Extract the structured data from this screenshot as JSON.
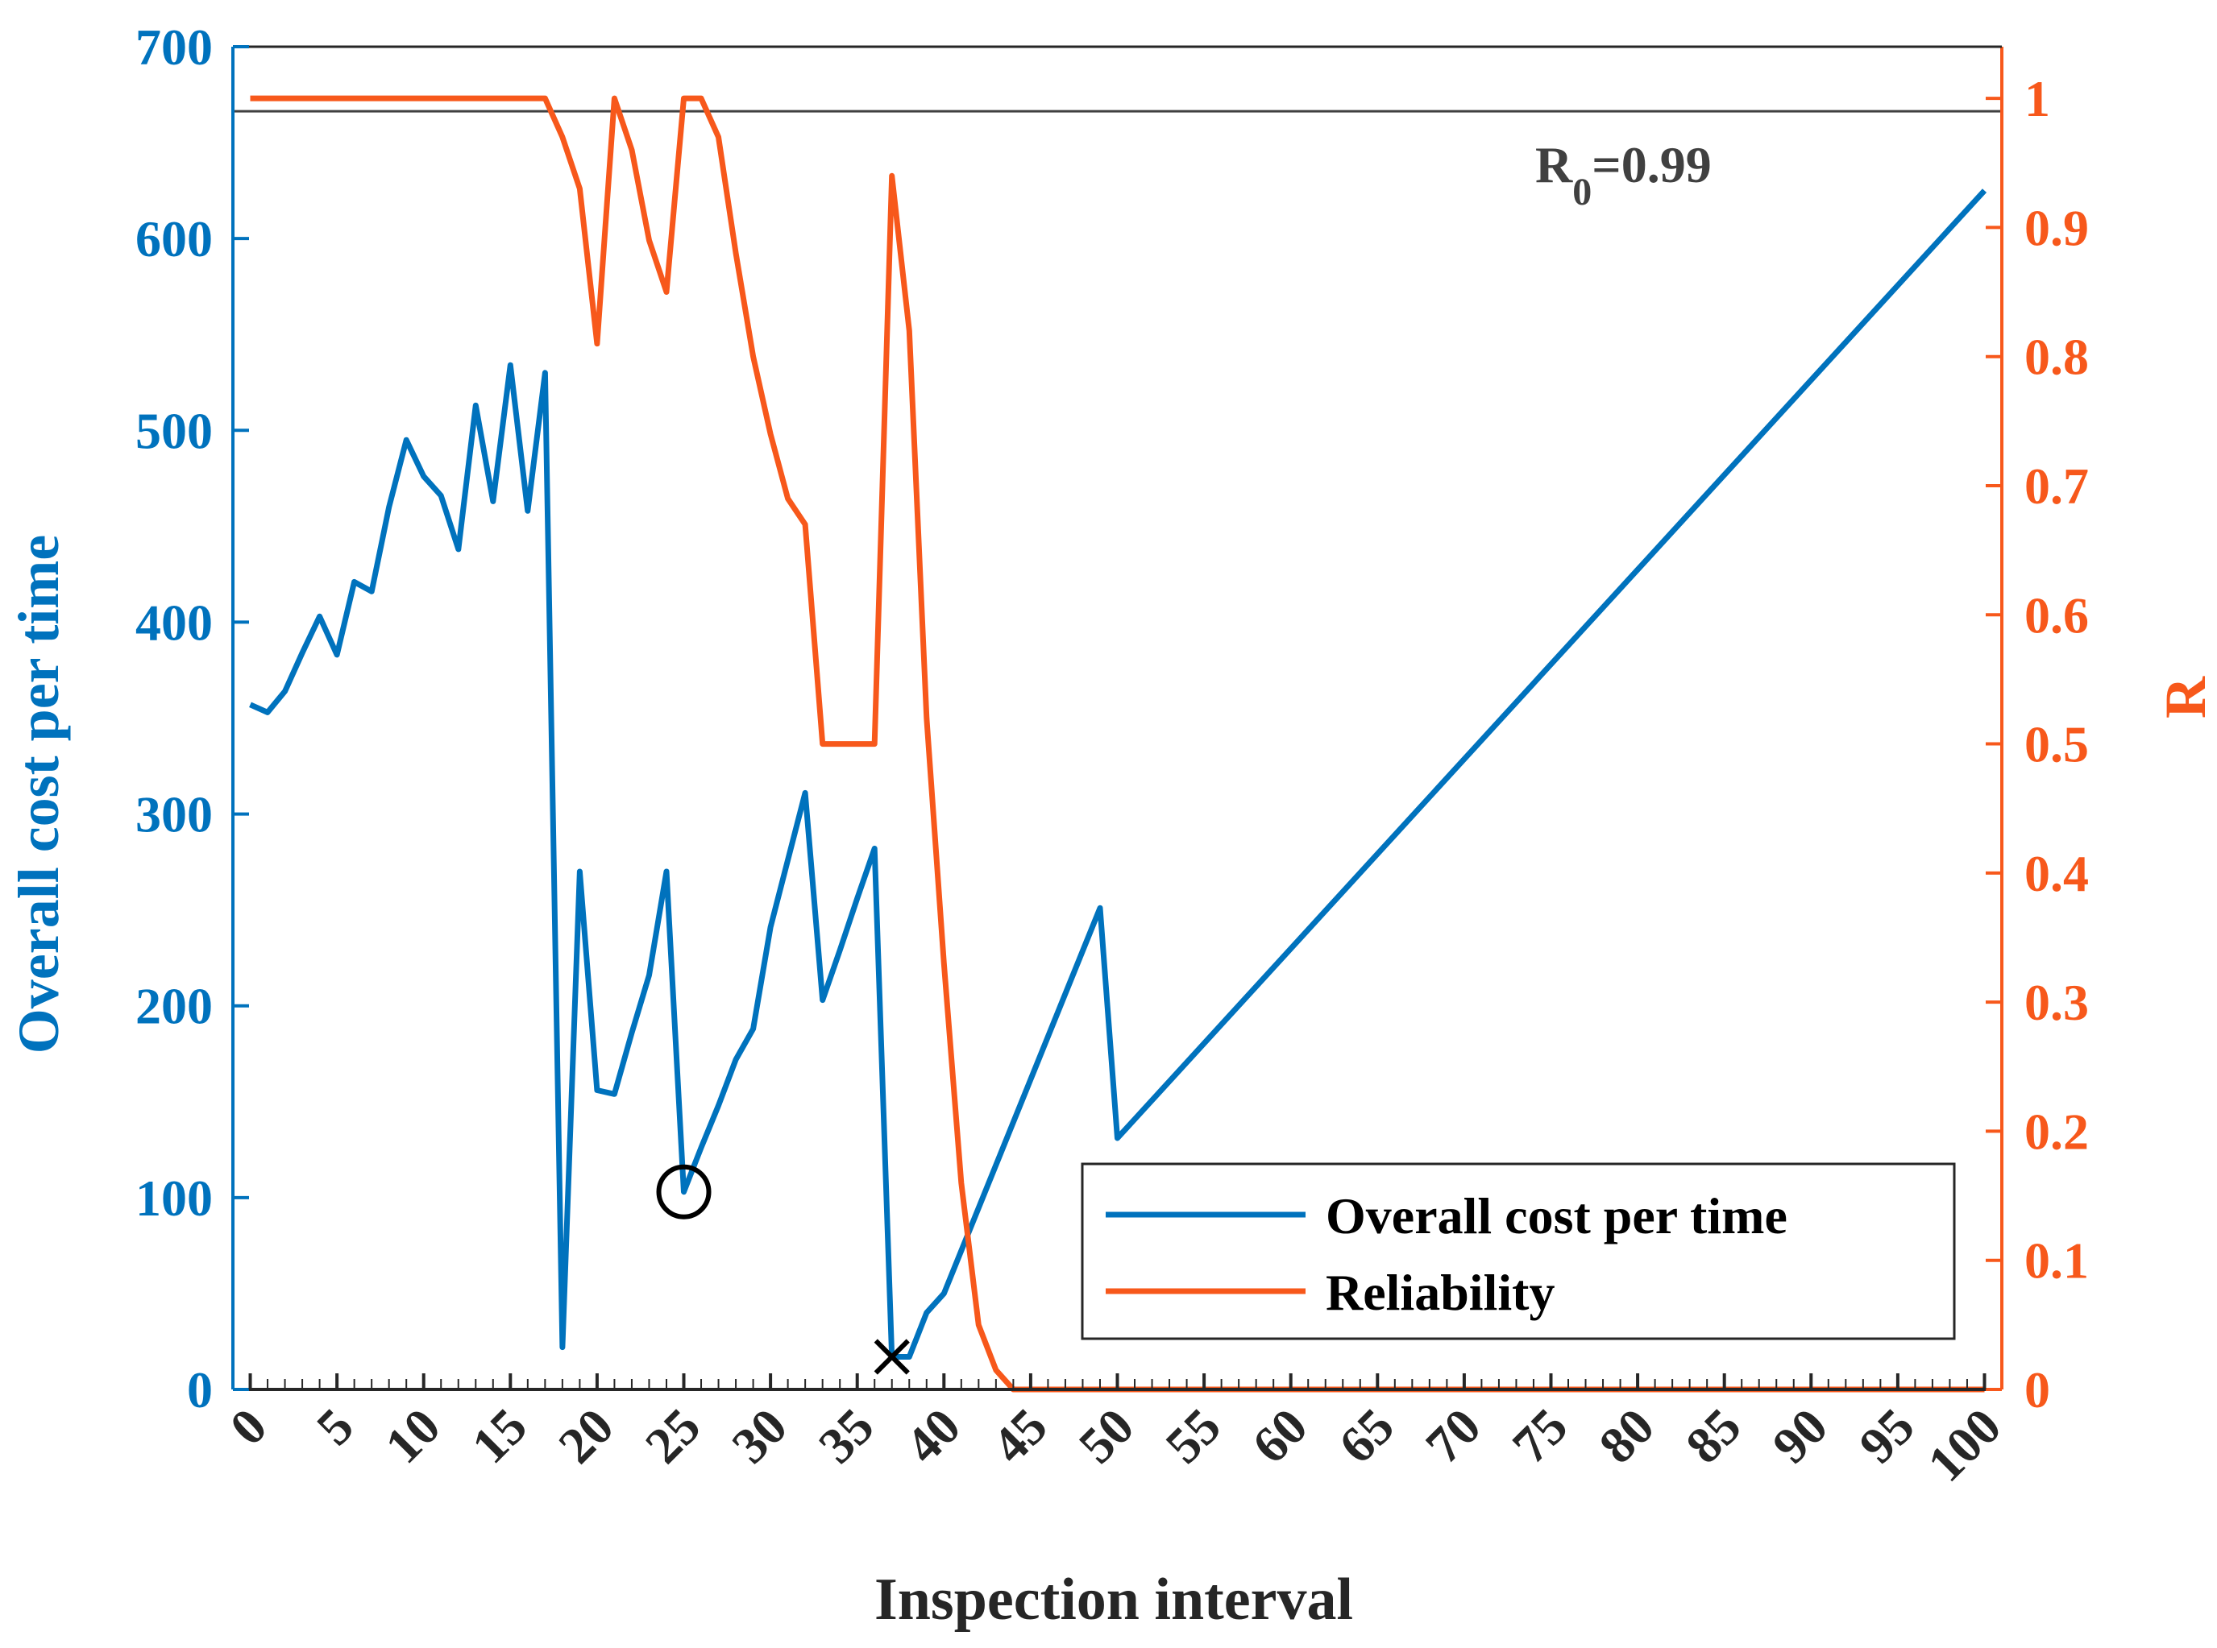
{
  "chart_data": {
    "type": "line",
    "xlabel": "Inspection interval",
    "ylabel_left": "Overall cost per time",
    "ylabel_right": "R",
    "x_ticks": [
      0,
      5,
      10,
      15,
      20,
      25,
      30,
      35,
      40,
      45,
      50,
      55,
      60,
      65,
      70,
      75,
      80,
      85,
      90,
      95,
      100
    ],
    "x_tick_labels": [
      "0",
      "5",
      "10",
      "15",
      "20",
      "25",
      "30",
      "35",
      "40",
      "45",
      "50",
      "55",
      "60",
      "65",
      "70",
      "75",
      "80",
      "85",
      "90",
      "95",
      "100"
    ],
    "x_category_positions": [
      0,
      1,
      2,
      3,
      4,
      5,
      6,
      7,
      8,
      9,
      10,
      11,
      12,
      13,
      14,
      15,
      16,
      17,
      18,
      19,
      20,
      21,
      22,
      23,
      24,
      25,
      26,
      27,
      28,
      29,
      30,
      31,
      32,
      33,
      34,
      35,
      36,
      37,
      38,
      39,
      40,
      41,
      42,
      43,
      44,
      45,
      46,
      47,
      48,
      49,
      50,
      51,
      52,
      53,
      54,
      55,
      56,
      57,
      58,
      59,
      60,
      61,
      62,
      63,
      64,
      65,
      66,
      67,
      68,
      69,
      70,
      71,
      72,
      73,
      74,
      75,
      76,
      77,
      78,
      79,
      80,
      81,
      82,
      83,
      84,
      85,
      86,
      87,
      88,
      89,
      90,
      91,
      92,
      93,
      94,
      95,
      96,
      97,
      98,
      99,
      100
    ],
    "xlim": [
      -1,
      101
    ],
    "ylim_left": [
      0,
      700
    ],
    "y_ticks_left": [
      0,
      100,
      200,
      300,
      400,
      500,
      600,
      700
    ],
    "y_tick_labels_left": [
      "0",
      "100",
      "200",
      "300",
      "400",
      "500",
      "600",
      "700"
    ],
    "ylim_right": [
      0,
      1.04
    ],
    "y_ticks_right": [
      0,
      0.1,
      0.2,
      0.3,
      0.4,
      0.5,
      0.6,
      0.7,
      0.8,
      0.9,
      1
    ],
    "y_tick_labels_right": [
      "0",
      "0.1",
      "0.2",
      "0.3",
      "0.4",
      "0.5",
      "0.6",
      "0.7",
      "0.8",
      "0.9",
      "1"
    ],
    "series": [
      {
        "name": "Overall cost per time",
        "axis": "left",
        "color": "#0072BD",
        "x": [
          0,
          1,
          2,
          3,
          4,
          5,
          6,
          7,
          8,
          9,
          10,
          11,
          12,
          13,
          14,
          15,
          16,
          17,
          18,
          19,
          20,
          21,
          22,
          23,
          24,
          25,
          26,
          27,
          28,
          29,
          30,
          31,
          32,
          33,
          34,
          35,
          36,
          37,
          38,
          39,
          40,
          49,
          50,
          100
        ],
        "values": [
          357,
          353,
          364,
          384,
          403,
          383,
          421,
          416,
          460,
          495,
          476,
          466,
          438,
          513,
          463,
          534,
          458,
          530,
          22,
          270,
          156,
          154,
          186,
          216,
          270,
          103,
          126,
          148,
          172,
          188,
          241,
          276,
          311,
          203,
          229,
          256,
          282,
          17,
          17,
          40,
          50,
          251,
          131,
          625
        ]
      },
      {
        "name": "Reliability",
        "axis": "right",
        "color": "#F7581B",
        "x": [
          0,
          1,
          2,
          3,
          4,
          5,
          6,
          7,
          8,
          9,
          10,
          11,
          12,
          13,
          14,
          15,
          16,
          17,
          18,
          19,
          20,
          21,
          22,
          23,
          24,
          25,
          26,
          27,
          28,
          29,
          30,
          31,
          32,
          33,
          34,
          35,
          36,
          37,
          38,
          39,
          40,
          41,
          42,
          43,
          44,
          45,
          46,
          47,
          48,
          49,
          50,
          60,
          70,
          80,
          90,
          100
        ],
        "values": [
          1.0,
          1.0,
          1.0,
          1.0,
          1.0,
          1.0,
          1.0,
          1.0,
          1.0,
          1.0,
          1.0,
          1.0,
          1.0,
          1.0,
          1.0,
          1.0,
          1.0,
          1.0,
          0.97,
          0.93,
          0.81,
          1.0,
          0.96,
          0.89,
          0.85,
          1.0,
          1.0,
          0.97,
          0.88,
          0.8,
          0.74,
          0.69,
          0.67,
          0.5,
          0.5,
          0.5,
          0.5,
          0.94,
          0.82,
          0.52,
          0.33,
          0.16,
          0.05,
          0.015,
          0,
          0,
          0,
          0,
          0,
          0,
          0,
          0,
          0,
          0,
          0,
          0
        ]
      }
    ],
    "reference_line": {
      "label_main": "R",
      "label_sub": "0",
      "label_value": "=0.99",
      "axis": "right",
      "value": 0.99,
      "color": "#404040"
    },
    "markers": [
      {
        "name": "circle",
        "x": 25,
        "y": 103,
        "axis": "left"
      },
      {
        "name": "cross",
        "x": 37,
        "y": 17,
        "axis": "left"
      }
    ],
    "legend": {
      "placement": "bottom-right",
      "entries": [
        "Overall cost per time",
        "Reliability"
      ]
    },
    "colors": {
      "left_axis": "#0072BD",
      "right_axis": "#F7581B",
      "x_axis": "#262626"
    }
  }
}
